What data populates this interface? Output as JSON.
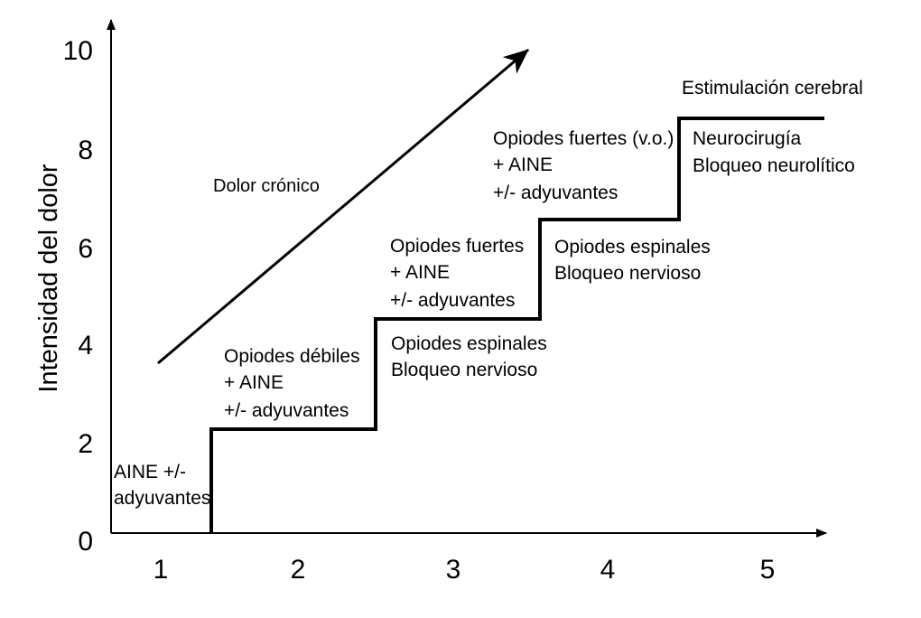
{
  "axes": {
    "ylabel": "Intensidad del dolor",
    "y_ticks": [
      "0",
      "2",
      "4",
      "6",
      "8",
      "10"
    ],
    "x_ticks": [
      "1",
      "2",
      "3",
      "4",
      "5"
    ]
  },
  "arrow_label": "Dolor crónico",
  "steps": [
    {
      "lines": [
        "AINE +/-",
        "adyuvantes"
      ]
    },
    {
      "lines": [
        "Opiodes débiles",
        "+ AINE",
        "+/- adyuvantes"
      ]
    },
    {
      "lines": [
        "Opiodes fuertes",
        "+ AINE",
        "+/- adyuvantes"
      ]
    },
    {
      "lines": [
        "Opiodes espinales",
        "Bloqueo nervioso"
      ]
    },
    {
      "lines": [
        "Opiodes fuertes (v.o.)",
        "+ AINE",
        "+/- adyuvantes"
      ]
    },
    {
      "lines": [
        "Opiodes espinales",
        "Bloqueo nervioso"
      ]
    },
    {
      "lines": [
        "Neurocirugía",
        "Bloqueo neurolítico"
      ]
    },
    {
      "lines": [
        "Estimulación cerebral"
      ]
    }
  ]
}
